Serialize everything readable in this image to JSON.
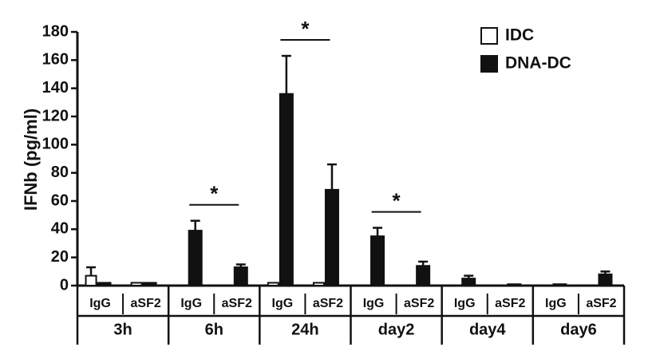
{
  "chart_data": {
    "type": "bar",
    "y_label": "IFNb (pg/ml)",
    "groups": [
      "3h",
      "6h",
      "24h",
      "day2",
      "day4",
      "day6"
    ],
    "categories": [
      "IgG",
      "aSF2",
      "IgG",
      "aSF2",
      "IgG",
      "aSF2",
      "IgG",
      "aSF2",
      "IgG",
      "aSF2",
      "IgG",
      "aSF2"
    ],
    "series": [
      {
        "name": "IDC",
        "color": "#ffffff",
        "values": [
          7,
          2,
          0,
          0,
          2,
          2,
          0,
          0,
          0,
          0,
          0,
          0
        ],
        "errors": [
          6,
          null,
          null,
          null,
          null,
          null,
          null,
          null,
          null,
          null,
          null,
          null
        ]
      },
      {
        "name": "DNA-DC",
        "color": "#111111",
        "values": [
          2,
          2,
          39,
          13,
          136,
          68,
          35,
          14,
          5,
          1,
          1,
          8
        ],
        "errors": [
          null,
          null,
          7,
          2,
          27,
          18,
          6,
          3,
          2,
          null,
          null,
          2
        ]
      }
    ],
    "significance": [
      null,
      "*",
      "*",
      "*",
      null,
      null
    ],
    "ylim": [
      0,
      180
    ],
    "yticks": [
      0,
      20,
      40,
      60,
      80,
      100,
      120,
      140,
      160,
      180
    ]
  }
}
